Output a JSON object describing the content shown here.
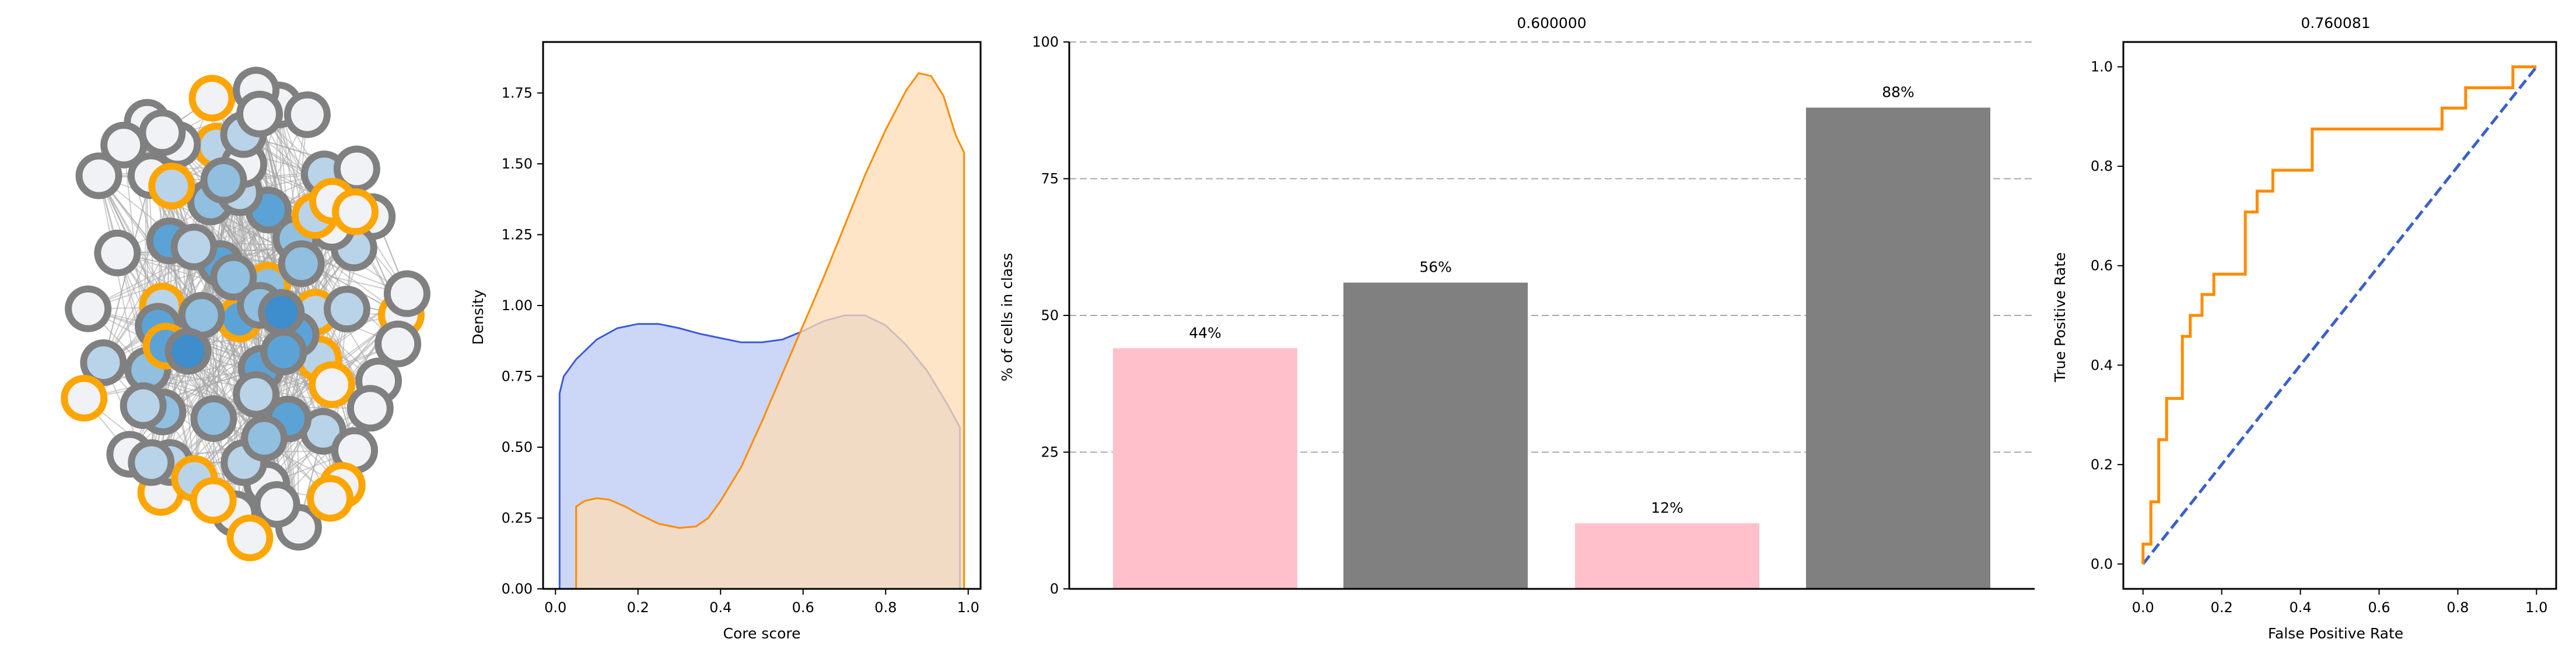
{
  "colors": {
    "node_gray_edge": "#808080",
    "node_orange_edge": "#FFA500",
    "network_edge": "#a6a6a6",
    "kde_blue_line": "#3b5bdb",
    "kde_blue_fill": "#ccd6f6",
    "kde_orange_line": "#ff8c00",
    "kde_orange_fill": "#ffdcb4",
    "bar_pink": "#ffc0cb",
    "bar_gray": "#808080",
    "roc_orange": "#ff8c00",
    "roc_diag": "#3a5fcd"
  },
  "chart_data": [
    {
      "type": "network",
      "node_count": 81,
      "orange_outlined_nodes": 21,
      "fill_palette": [
        "#f0f2f5",
        "#b9d3e9",
        "#90bfe0",
        "#5ba3d6",
        "#3e8dcc"
      ]
    },
    {
      "type": "area",
      "title": "",
      "xlabel": "Core score",
      "ylabel": "Density",
      "xlim": [
        -0.03,
        1.03
      ],
      "ylim": [
        0,
        1.93
      ],
      "xticks": [
        0.0,
        0.2,
        0.4,
        0.6,
        0.8,
        1.0
      ],
      "xtick_labels": [
        "0.0",
        "0.2",
        "0.4",
        "0.6",
        "0.8",
        "1.0"
      ],
      "yticks": [
        0.0,
        0.25,
        0.5,
        0.75,
        1.0,
        1.25,
        1.5,
        1.75
      ],
      "ytick_labels": [
        "0.00",
        "0.25",
        "0.50",
        "0.75",
        "1.00",
        "1.25",
        "1.50",
        "1.75"
      ],
      "series": [
        {
          "x": [
            0.01,
            0.02,
            0.05,
            0.1,
            0.15,
            0.2,
            0.25,
            0.3,
            0.35,
            0.4,
            0.45,
            0.5,
            0.55,
            0.6,
            0.65,
            0.7,
            0.75,
            0.8,
            0.85,
            0.9,
            0.95,
            0.98
          ],
          "y": [
            0.69,
            0.75,
            0.81,
            0.88,
            0.92,
            0.935,
            0.935,
            0.92,
            0.9,
            0.885,
            0.87,
            0.87,
            0.88,
            0.91,
            0.945,
            0.965,
            0.965,
            0.93,
            0.86,
            0.77,
            0.65,
            0.57
          ]
        },
        {
          "x": [
            0.05,
            0.07,
            0.1,
            0.13,
            0.17,
            0.2,
            0.25,
            0.3,
            0.34,
            0.37,
            0.4,
            0.45,
            0.5,
            0.55,
            0.6,
            0.65,
            0.7,
            0.75,
            0.8,
            0.85,
            0.88,
            0.91,
            0.94,
            0.97,
            0.99
          ],
          "y": [
            0.29,
            0.31,
            0.32,
            0.315,
            0.29,
            0.265,
            0.23,
            0.215,
            0.22,
            0.25,
            0.31,
            0.43,
            0.59,
            0.76,
            0.93,
            1.1,
            1.28,
            1.46,
            1.62,
            1.76,
            1.82,
            1.81,
            1.74,
            1.6,
            1.54
          ]
        }
      ]
    },
    {
      "type": "bar",
      "title": "0.600000",
      "xlabel": "",
      "ylabel": "% of cells in class",
      "ylim": [
        0,
        100
      ],
      "yticks": [
        0,
        25,
        50,
        75,
        100
      ],
      "ytick_labels": [
        "0",
        "25",
        "50",
        "75",
        "100"
      ],
      "grid": "horizontal dashed",
      "values": [
        44,
        56,
        12,
        88
      ],
      "value_labels": [
        "44%",
        "56%",
        "12%",
        "88%"
      ]
    },
    {
      "type": "line",
      "title": "0.760081",
      "xlabel": "False Positive Rate",
      "ylabel": "True Positive Rate",
      "xlim": [
        -0.05,
        1.05
      ],
      "ylim": [
        -0.05,
        1.05
      ],
      "xticks": [
        0.0,
        0.2,
        0.4,
        0.6,
        0.8,
        1.0
      ],
      "xtick_labels": [
        "0.0",
        "0.2",
        "0.4",
        "0.6",
        "0.8",
        "1.0"
      ],
      "yticks": [
        0.0,
        0.2,
        0.4,
        0.6,
        0.8,
        1.0
      ],
      "ytick_labels": [
        "0.0",
        "0.2",
        "0.4",
        "0.6",
        "0.8",
        "1.0"
      ],
      "series": [
        {
          "x": [
            0.0,
            0.0,
            0.02,
            0.02,
            0.04,
            0.04,
            0.06,
            0.06,
            0.1,
            0.1,
            0.12,
            0.12,
            0.15,
            0.15,
            0.18,
            0.18,
            0.26,
            0.26,
            0.29,
            0.29,
            0.33,
            0.33,
            0.43,
            0.43,
            0.76,
            0.76,
            0.82,
            0.82,
            0.94,
            0.94,
            1.0
          ],
          "y": [
            0.0,
            0.04,
            0.04,
            0.125,
            0.125,
            0.25,
            0.25,
            0.333,
            0.333,
            0.458,
            0.458,
            0.5,
            0.5,
            0.542,
            0.542,
            0.583,
            0.583,
            0.708,
            0.708,
            0.75,
            0.75,
            0.792,
            0.792,
            0.875,
            0.875,
            0.917,
            0.917,
            0.958,
            0.958,
            1.0,
            1.0
          ]
        },
        {
          "x": [
            0.0,
            1.0
          ],
          "y": [
            0.0,
            1.0
          ]
        }
      ]
    }
  ]
}
